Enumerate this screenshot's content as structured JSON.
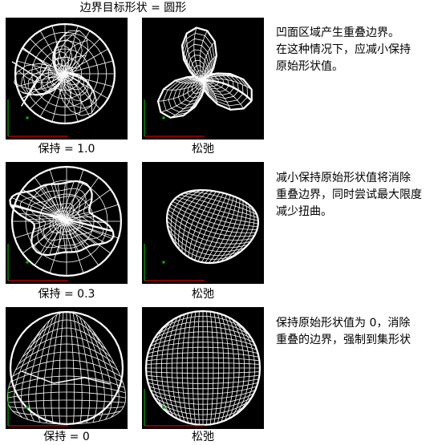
{
  "header": {
    "title": "边界目标形状 = 圆形"
  },
  "rows": [
    {
      "left_caption": "保持 = 1.0",
      "right_caption": "松弛",
      "note": [
        "凹面区域产生重叠边界。",
        "在这种情况下，应减小保持",
        "原始形状值。"
      ]
    },
    {
      "left_caption": "保持 = 0.3",
      "right_caption": "松弛",
      "note": [
        "减小保持原始形状值将消除",
        "重叠边界，同时尝试最大限度",
        "减少扭曲。"
      ]
    },
    {
      "left_caption": "保持 = 0",
      "right_caption": "松弛",
      "note": [
        "保持原始形状值为 0，消除",
        "重叠的边界，强制到集形状"
      ]
    }
  ],
  "colors": {
    "panel_bg": "#000000",
    "mesh": "#ffffff",
    "axis_x": "#cc0000",
    "axis_y": "#00aa00"
  }
}
